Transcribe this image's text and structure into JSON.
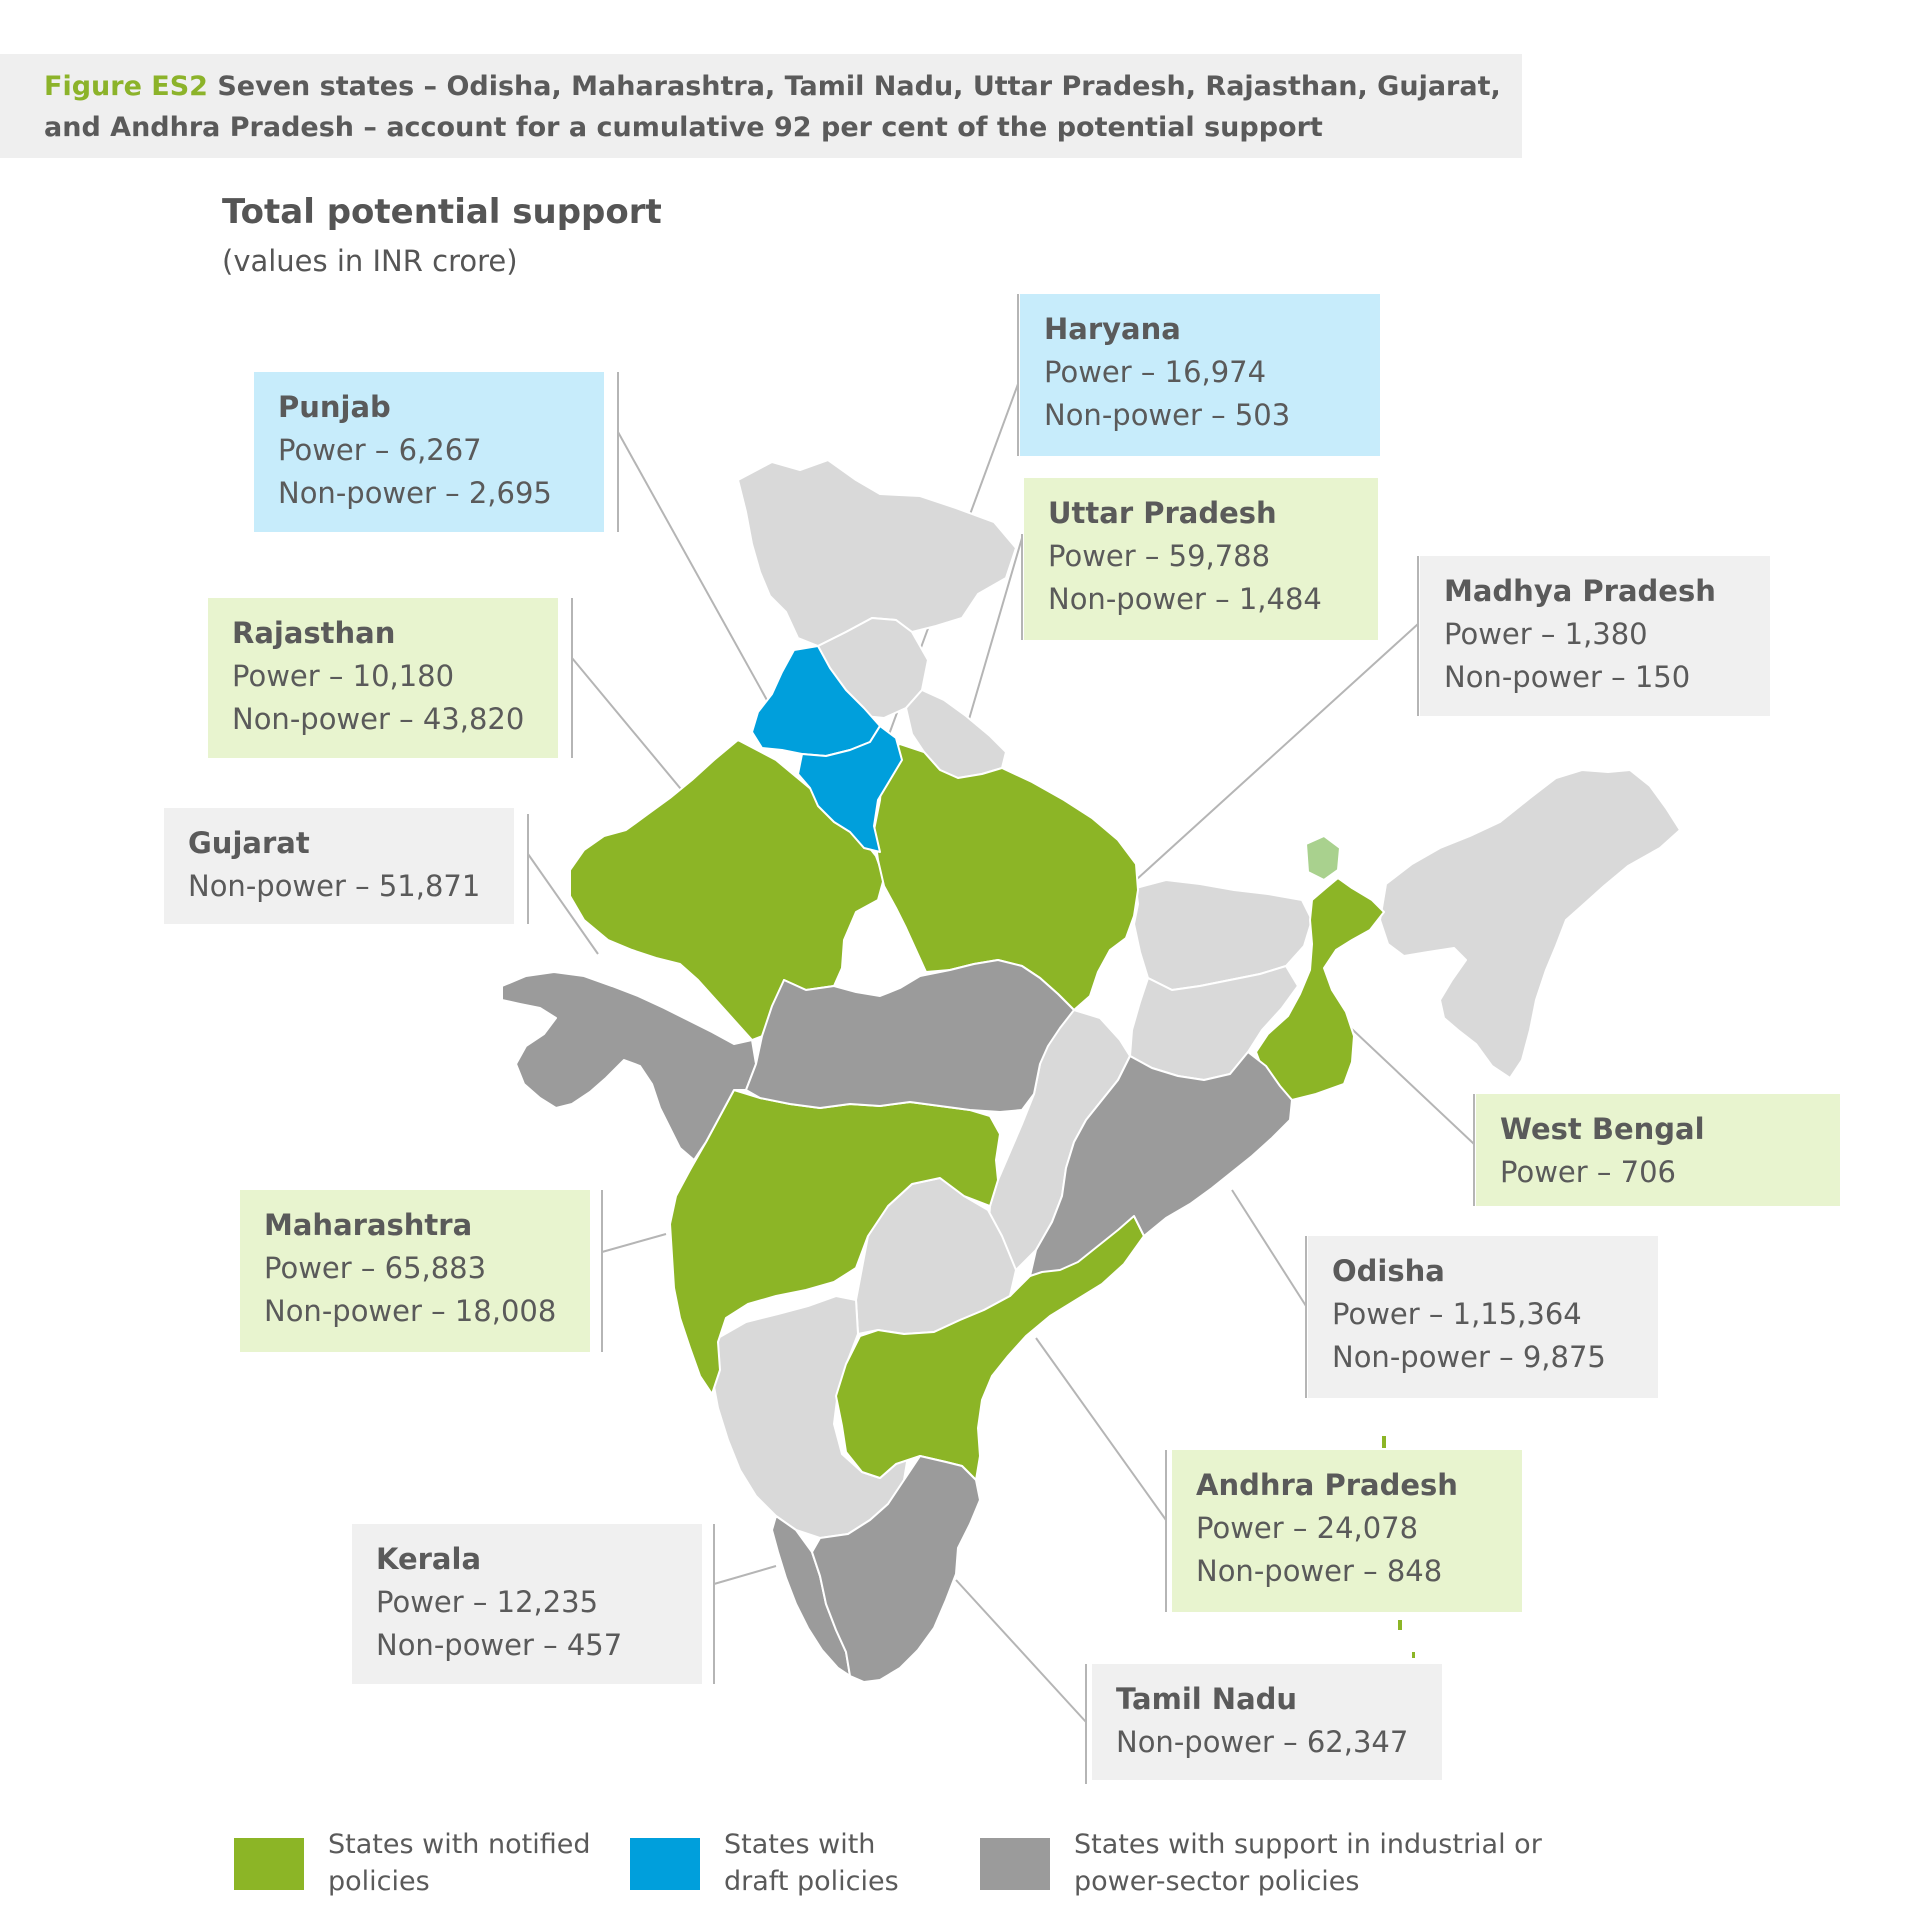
{
  "figure": {
    "label": "Figure ES2",
    "caption": "Seven states – Odisha, Maharashtra, Tamil Nadu, Uttar Pradesh, Rajasthan, Gujarat, and Andhra Pradesh – account for a cumulative 92 per cent of the potential support"
  },
  "chart": {
    "title": "Total potential support",
    "subtitle": "(values in INR crore)"
  },
  "colors": {
    "notified": "#8cb526",
    "draft": "#009fdc",
    "other": "#9b9b9b",
    "no_data": "#d9d9d9",
    "notified_box": "#e8f4cf",
    "draft_box": "#c7ecfb",
    "other_box": "#f0f0f0"
  },
  "callouts": [
    {
      "state": "Punjab",
      "lines": [
        "Power – 6,267",
        "Non-power – 2,695"
      ],
      "category": "draft"
    },
    {
      "state": "Haryana",
      "lines": [
        "Power – 16,974",
        "Non-power – 503"
      ],
      "category": "draft"
    },
    {
      "state": "Uttar Pradesh",
      "lines": [
        "Power – 59,788",
        "Non-power – 1,484"
      ],
      "category": "notified"
    },
    {
      "state": "Madhya Pradesh",
      "lines": [
        "Power – 1,380",
        "Non-power – 150"
      ],
      "category": "other"
    },
    {
      "state": "Rajasthan",
      "lines": [
        "Power – 10,180",
        "Non-power – 43,820"
      ],
      "category": "notified"
    },
    {
      "state": "Gujarat",
      "lines": [
        "Non-power – 51,871"
      ],
      "category": "other"
    },
    {
      "state": "West Bengal",
      "lines": [
        "Power – 706"
      ],
      "category": "notified"
    },
    {
      "state": "Maharashtra",
      "lines": [
        "Power – 65,883",
        "Non-power – 18,008"
      ],
      "category": "notified"
    },
    {
      "state": "Odisha",
      "lines": [
        "Power – 1,15,364",
        "Non-power – 9,875"
      ],
      "category": "other"
    },
    {
      "state": "Andhra Pradesh",
      "lines": [
        "Power – 24,078",
        "Non-power – 848"
      ],
      "category": "notified"
    },
    {
      "state": "Kerala",
      "lines": [
        "Power – 12,235",
        "Non-power – 457"
      ],
      "category": "other"
    },
    {
      "state": "Tamil Nadu",
      "lines": [
        "Non-power – 62,347"
      ],
      "category": "other"
    }
  ],
  "legend": [
    {
      "label_line1": "States with notified",
      "label_line2": "policies",
      "category": "notified"
    },
    {
      "label_line1": "States with",
      "label_line2": "draft policies",
      "category": "draft"
    },
    {
      "label_line1": "States with support in industrial or",
      "label_line2": "power-sector policies",
      "category": "other"
    }
  ]
}
